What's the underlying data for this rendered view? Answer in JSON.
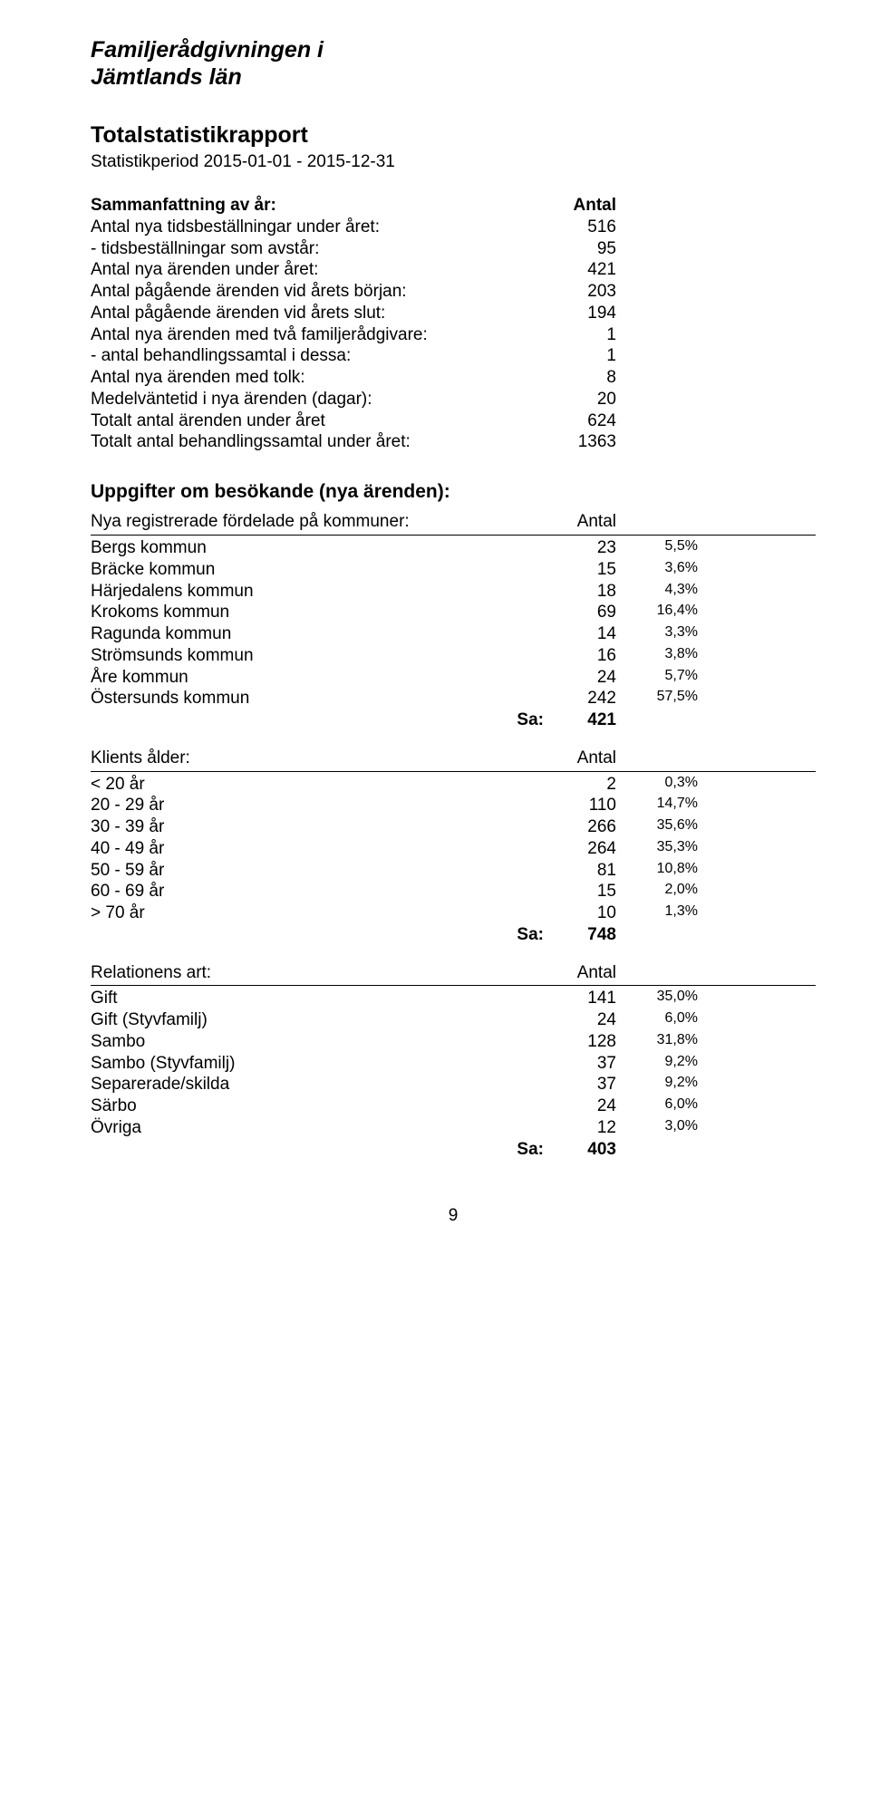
{
  "title_line1": "Familjerådgivningen i",
  "title_line2": "Jämtlands län",
  "report_title": "Totalstatistikrapport",
  "period": "Statistikperiod 2015-01-01 - 2015-12-31",
  "summary": {
    "head_label": "Sammanfattning av år:",
    "head_value": "Antal",
    "rows": [
      {
        "label": "Antal nya tidsbeställningar under året:",
        "value": "516"
      },
      {
        "label": "- tidsbeställningar som avstår:",
        "value": "95"
      },
      {
        "label": "Antal nya ärenden under året:",
        "value": "421"
      },
      {
        "label": "Antal pågående ärenden vid årets början:",
        "value": "203"
      },
      {
        "label": "Antal pågående ärenden vid årets slut:",
        "value": "194"
      },
      {
        "label": "Antal nya ärenden med två familjerådgivare:",
        "value": "1"
      },
      {
        "label": "- antal behandlingssamtal i dessa:",
        "value": "1"
      },
      {
        "label": "Antal nya ärenden med tolk:",
        "value": "8"
      },
      {
        "label": "Medelväntetid i nya ärenden (dagar):",
        "value": "20"
      },
      {
        "label": "Totalt antal ärenden under året",
        "value": "624"
      },
      {
        "label": "Totalt antal behandlingssamtal under året:",
        "value": "1363"
      }
    ]
  },
  "visitors_head": "Uppgifter om besökande (nya ärenden):",
  "municipalities": {
    "header_label": "Nya registrerade fördelade på kommuner:",
    "header_value": "Antal",
    "rows": [
      {
        "label": "Bergs kommun",
        "value": "23",
        "pct": "5,5%"
      },
      {
        "label": "Bräcke kommun",
        "value": "15",
        "pct": "3,6%"
      },
      {
        "label": "Härjedalens kommun",
        "value": "18",
        "pct": "4,3%"
      },
      {
        "label": "Krokoms kommun",
        "value": "69",
        "pct": "16,4%"
      },
      {
        "label": "Ragunda kommun",
        "value": "14",
        "pct": "3,3%"
      },
      {
        "label": "Strömsunds kommun",
        "value": "16",
        "pct": "3,8%"
      },
      {
        "label": "Åre kommun",
        "value": "24",
        "pct": "5,7%"
      },
      {
        "label": "Östersunds kommun",
        "value": "242",
        "pct": "57,5%"
      }
    ],
    "sa_label": "Sa:",
    "sa_value": "421"
  },
  "age": {
    "header_label": "Klients ålder:",
    "header_value": "Antal",
    "rows": [
      {
        "label": "< 20 år",
        "value": "2",
        "pct": "0,3%"
      },
      {
        "label": "20 - 29 år",
        "value": "110",
        "pct": "14,7%"
      },
      {
        "label": "30 - 39 år",
        "value": "266",
        "pct": "35,6%"
      },
      {
        "label": "40 - 49 år",
        "value": "264",
        "pct": "35,3%"
      },
      {
        "label": "50 - 59 år",
        "value": "81",
        "pct": "10,8%"
      },
      {
        "label": "60 - 69 år",
        "value": "15",
        "pct": "2,0%"
      },
      {
        "label": "> 70 år",
        "value": "10",
        "pct": "1,3%"
      }
    ],
    "sa_label": "Sa:",
    "sa_value": "748"
  },
  "relation": {
    "header_label": "Relationens art:",
    "header_value": "Antal",
    "rows": [
      {
        "label": "Gift",
        "value": "141",
        "pct": "35,0%"
      },
      {
        "label": "Gift (Styvfamilj)",
        "value": "24",
        "pct": "6,0%"
      },
      {
        "label": "Sambo",
        "value": "128",
        "pct": "31,8%"
      },
      {
        "label": "Sambo (Styvfamilj)",
        "value": "37",
        "pct": "9,2%"
      },
      {
        "label": "Separerade/skilda",
        "value": "37",
        "pct": "9,2%"
      },
      {
        "label": "Särbo",
        "value": "24",
        "pct": "6,0%"
      },
      {
        "label": "Övriga",
        "value": "12",
        "pct": "3,0%"
      }
    ],
    "sa_label": "Sa:",
    "sa_value": "403"
  },
  "page_number": "9"
}
